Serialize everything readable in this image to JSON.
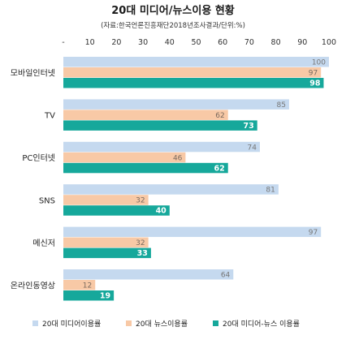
{
  "chart_data": {
    "type": "bar",
    "orientation": "horizontal",
    "title": "20대 미디어/뉴스이용 현황",
    "subtitle": "(자료:한국언론진흥재단2018년조사결과/단위:%)",
    "categories": [
      "모바일인터넷",
      "TV",
      "PC인터넷",
      "SNS",
      "메신저",
      "온라인동영상"
    ],
    "x_tick_labels": [
      "-",
      "10",
      "20",
      "30",
      "40",
      "50",
      "60",
      "70",
      "80",
      "90",
      "100"
    ],
    "xlim": [
      0,
      100
    ],
    "grid": false,
    "legend_position": "bottom",
    "series": [
      {
        "name": "20대 미디어이용률",
        "color": "#c5d9ef",
        "values": [
          100,
          85,
          74,
          81,
          97,
          64
        ]
      },
      {
        "name": "20대 뉴스이용률",
        "color": "#f8c9a6",
        "values": [
          97,
          62,
          46,
          32,
          32,
          12
        ]
      },
      {
        "name": "20대 미디어-뉴스 이용률",
        "color": "#16a89b",
        "values": [
          98,
          73,
          62,
          40,
          33,
          19
        ]
      }
    ]
  }
}
